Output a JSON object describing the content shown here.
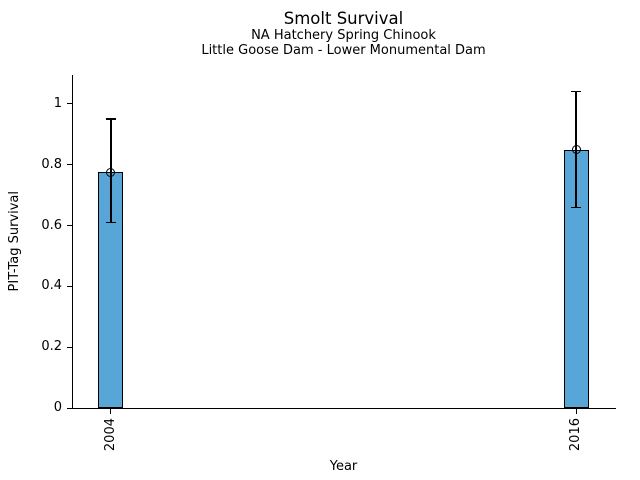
{
  "chart_data": {
    "type": "bar",
    "title": "Smolt Survival",
    "subtitles": [
      "NA Hatchery Spring Chinook",
      "Little Goose Dam - Lower Monumental Dam"
    ],
    "xlabel": "Year",
    "ylabel": "PIT-Tag Survival",
    "categories": [
      2004,
      2016
    ],
    "values": [
      0.775,
      0.85
    ],
    "error_low": [
      0.61,
      0.66
    ],
    "error_high": [
      0.95,
      1.04
    ],
    "marker": "open-circle",
    "xtick_labels": [
      "2004",
      "2016"
    ],
    "xtick_rotation_deg": 90,
    "yticks": [
      0,
      0.2,
      0.4,
      0.6,
      0.8,
      1
    ],
    "ytick_labels": [
      "0",
      "0.2",
      "0.4",
      "0.6",
      "0.8",
      "1"
    ],
    "xlim": [
      2003,
      2017
    ],
    "ylim": [
      0,
      1.095
    ],
    "bar_width_years": 0.65,
    "grid": false,
    "legend": false,
    "colors": {
      "bar_fill": "#58A5D8",
      "bar_edge": "#000000",
      "error_color": "#000000",
      "axis": "#000000",
      "text": "#000000",
      "background": "#FFFFFF"
    }
  }
}
